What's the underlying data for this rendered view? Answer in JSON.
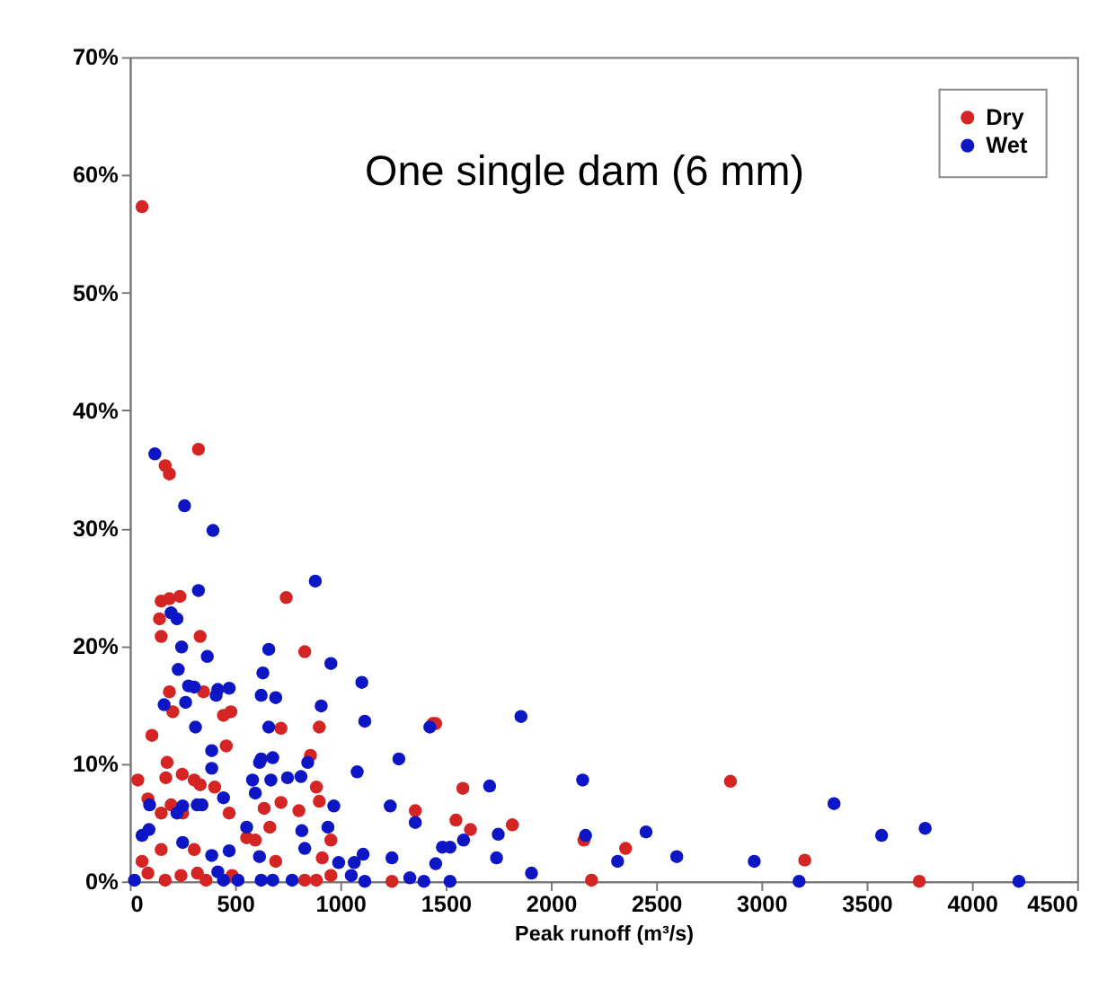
{
  "chart_data": {
    "type": "scatter",
    "xlabel": "Peak runoff (m³/s)",
    "annotations": [
      "One single dam (6 mm)"
    ],
    "xlim": [
      0,
      4500
    ],
    "xticks": [
      0,
      500,
      1000,
      1500,
      2000,
      2500,
      3000,
      3500,
      4000,
      4500
    ],
    "ylim": [
      0,
      70
    ],
    "yticks": [
      {
        "value": 0,
        "label": "0%"
      },
      {
        "value": 10,
        "label": "10%"
      },
      {
        "value": 20,
        "label": "20%"
      },
      {
        "value": 30,
        "label": "30%"
      },
      {
        "value": 40,
        "label": "40%"
      },
      {
        "value": 50,
        "label": "50%"
      },
      {
        "value": 60,
        "label": "60%"
      },
      {
        "value": 70,
        "label": "70%"
      }
    ],
    "grid": false,
    "legend": "top right",
    "marker": "circle",
    "series": [
      {
        "name": "Dry",
        "color": "#d42424",
        "x": [
          58,
          326,
          168,
          188,
          149,
          188,
          238,
          141,
          149,
          334,
          743,
          831,
          188,
          204,
          350,
          445,
          480,
          105,
          718,
          900,
          458,
          38,
          177,
          171,
          249,
          306,
          334,
          403,
          472,
          86,
          149,
          196,
          251,
          638,
          718,
          665,
          803,
          886,
          900,
          858,
          955,
          914,
          149,
          306,
          555,
          596,
          693,
          58,
          86,
          168,
          243,
          321,
          362,
          486,
          831,
          886,
          955,
          1245,
          1356,
          1439,
          1453,
          1549,
          1582,
          1618,
          1817,
          2157,
          2193,
          2355,
          2853,
          3206,
          3750
        ],
        "values": [
          57.3,
          36.7,
          35.3,
          34.6,
          23.8,
          24.0,
          24.2,
          22.3,
          20.8,
          20.8,
          24.1,
          19.5,
          16.1,
          14.4,
          16.1,
          14.1,
          14.4,
          12.4,
          13.0,
          13.1,
          11.5,
          8.6,
          10.1,
          8.8,
          9.1,
          8.6,
          8.2,
          8.0,
          5.8,
          7.0,
          5.8,
          6.5,
          5.8,
          6.2,
          6.7,
          4.6,
          6.0,
          8.0,
          6.8,
          10.7,
          3.5,
          2.0,
          2.7,
          2.7,
          3.7,
          3.5,
          1.7,
          1.7,
          0.7,
          0.1,
          0.5,
          0.7,
          0.1,
          0.5,
          0.1,
          0.1,
          0.5,
          0,
          6.0,
          13.4,
          13.4,
          5.2,
          7.9,
          4.4,
          4.8,
          3.5,
          0.1,
          2.8,
          8.5,
          1.8,
          0
        ]
      },
      {
        "name": "Wet",
        "color": "#0c16c4",
        "x": [
          22,
          119,
          260,
          395,
          326,
          196,
          224,
          246,
          230,
          368,
          279,
          306,
          418,
          472,
          163,
          265,
          410,
          312,
          389,
          389,
          445,
          94,
          224,
          251,
          320,
          343,
          251,
          58,
          91,
          389,
          472,
          555,
          583,
          596,
          616,
          624,
          660,
          632,
          624,
          693,
          660,
          679,
          670,
          749,
          813,
          845,
          881,
          909,
          955,
          817,
          831,
          941,
          969,
          616,
          418,
          445,
          514,
          624,
          679,
          771,
          992,
          1052,
          1066,
          1102,
          1116,
          1080,
          1108,
          1116,
          1245,
          1237,
          1278,
          1330,
          1356,
          1425,
          1397,
          1453,
          1485,
          1521,
          1521,
          1585,
          1709,
          1750,
          1742,
          1858,
          1908,
          2151,
          2165,
          2317,
          2452,
          2598,
          2966,
          3179,
          3345,
          3571,
          3778,
          4223
        ],
        "values": [
          0.1,
          36.3,
          31.9,
          29.8,
          24.7,
          22.8,
          22.3,
          19.9,
          18.0,
          19.1,
          16.6,
          16.5,
          16.3,
          16.4,
          15.0,
          15.2,
          15.8,
          13.1,
          11.1,
          9.6,
          7.1,
          6.5,
          5.8,
          6.4,
          6.5,
          6.5,
          3.3,
          3.9,
          4.4,
          2.2,
          2.6,
          4.6,
          8.6,
          7.5,
          10.1,
          10.4,
          19.7,
          17.7,
          15.8,
          15.6,
          13.1,
          10.5,
          8.6,
          8.8,
          8.9,
          10.1,
          25.5,
          14.9,
          18.5,
          4.3,
          2.8,
          4.6,
          6.4,
          2.1,
          0.8,
          0.1,
          0.1,
          0.1,
          0.1,
          0.1,
          1.6,
          0.5,
          1.6,
          16.9,
          13.6,
          9.3,
          2.3,
          0,
          2.0,
          6.4,
          10.4,
          0.3,
          5.0,
          13.1,
          0,
          1.5,
          2.9,
          2.9,
          0,
          3.5,
          8.1,
          4.0,
          2.0,
          14.0,
          0.7,
          8.6,
          3.9,
          1.7,
          4.2,
          2.1,
          1.7,
          0,
          6.6,
          3.9,
          4.5,
          0
        ]
      }
    ]
  }
}
